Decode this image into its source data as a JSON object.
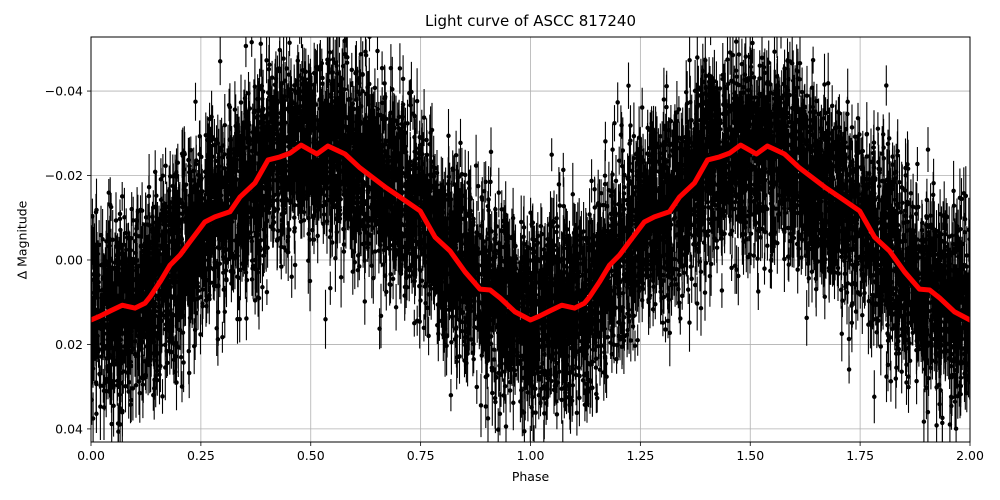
{
  "chart_data": {
    "type": "scatter",
    "title": "Light curve of ASCC 817240",
    "xlabel": "Phase",
    "ylabel": "Δ Magnitude",
    "xlim": [
      0.0,
      2.0
    ],
    "ylim": [
      0.0431,
      -0.0528
    ],
    "y_inverted": true,
    "grid": true,
    "legend": null,
    "x_ticks": [
      {
        "value": 0.0,
        "label": "0.00"
      },
      {
        "value": 0.25,
        "label": "0.25"
      },
      {
        "value": 0.5,
        "label": "0.50"
      },
      {
        "value": 0.75,
        "label": "0.75"
      },
      {
        "value": 1.0,
        "label": "1.00"
      },
      {
        "value": 1.25,
        "label": "1.25"
      },
      {
        "value": 1.5,
        "label": "1.50"
      },
      {
        "value": 1.75,
        "label": "1.75"
      },
      {
        "value": 2.0,
        "label": "2.00"
      }
    ],
    "y_ticks": [
      {
        "value": -0.04,
        "label": "−0.04"
      },
      {
        "value": -0.02,
        "label": "−0.02"
      },
      {
        "value": 0.0,
        "label": "0.00"
      },
      {
        "value": 0.02,
        "label": "0.02"
      },
      {
        "value": 0.04,
        "label": "0.04"
      }
    ],
    "series": [
      {
        "name": "binned model",
        "kind": "line",
        "color": "#ff0000",
        "linewidth": 5,
        "repeat_period": 1.0,
        "phase": [
          0.0,
          0.02,
          0.043,
          0.071,
          0.1,
          0.123,
          0.134,
          0.157,
          0.18,
          0.203,
          0.225,
          0.259,
          0.282,
          0.316,
          0.339,
          0.373,
          0.403,
          0.43,
          0.453,
          0.478,
          0.514,
          0.539,
          0.578,
          0.612,
          0.669,
          0.703,
          0.749,
          0.783,
          0.817,
          0.851,
          0.885,
          0.908,
          0.931,
          0.965,
          1.0
        ],
        "magnitude": [
          0.0142,
          0.0133,
          0.0121,
          0.0107,
          0.0114,
          0.0102,
          0.0088,
          0.0052,
          0.0012,
          -0.0012,
          -0.0043,
          -0.009,
          -0.0102,
          -0.0114,
          -0.0149,
          -0.0182,
          -0.0237,
          -0.0244,
          -0.0253,
          -0.0272,
          -0.0251,
          -0.027,
          -0.0251,
          -0.0218,
          -0.0173,
          -0.0149,
          -0.0116,
          -0.0054,
          -0.0021,
          0.0028,
          0.0069,
          0.0071,
          0.009,
          0.0123,
          0.0142
        ]
      },
      {
        "name": "observations",
        "kind": "errorbar",
        "color": "#000000",
        "marker": "o",
        "marker_size": 4.5,
        "approx_points_per_cycle": 4000,
        "scatter_sigma_mag": 0.011,
        "errorbar_halfwidth_mag": [
          0.003,
          0.008
        ],
        "follows": "binned model"
      }
    ]
  },
  "colors": {
    "grid": "#b0b0b0",
    "axes": "#000000",
    "curve": "#ff0000",
    "points": "#000000"
  }
}
